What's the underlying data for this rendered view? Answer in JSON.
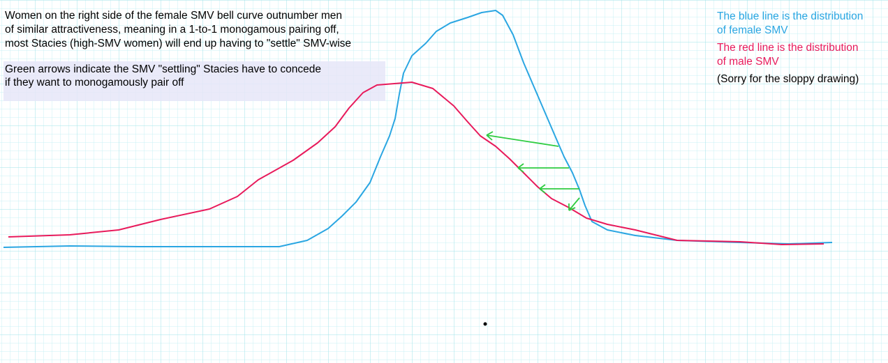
{
  "annotation": {
    "lines": [
      "Women on the right side of the female SMV bell curve outnumber men",
      "of similar attractiveness, meaning in a 1-to-1 monogamous pairing off,",
      "most Stacies (high-SMV women) will end up having to \"settle\" SMV-wise"
    ]
  },
  "arrows_note": {
    "lines": [
      "Green arrows indicate the SMV \"settling\" Stacies have to concede",
      "if they want to monogamously pair off"
    ]
  },
  "legend": {
    "blue": [
      "The blue line is the distribution",
      "of female SMV"
    ],
    "red": [
      "The red line is the distribution",
      "of male SMV"
    ],
    "apology": "(Sorry for the sloppy drawing)"
  }
}
